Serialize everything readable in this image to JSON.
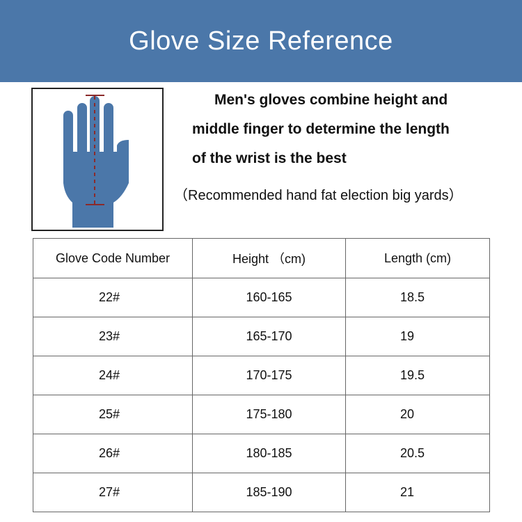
{
  "title": "Glove Size Reference",
  "description": {
    "lines": [
      "Men's gloves combine height and",
      "middle finger to determine the length",
      "of the wrist is the best"
    ],
    "note": "（Recommended hand fat election big yards）"
  },
  "illustration": {
    "icon": "hand-measure-icon",
    "hand_color": "#4b77a9",
    "measure_color": "#8b2a2a"
  },
  "colors": {
    "banner": "#4b77a9"
  },
  "table": {
    "headers": [
      "Glove Code Number",
      "Height （cm)",
      "Length (cm)"
    ],
    "rows": [
      [
        "22#",
        "160-165",
        "18.5"
      ],
      [
        "23#",
        "165-170",
        "19"
      ],
      [
        "24#",
        "170-175",
        "19.5"
      ],
      [
        "25#",
        "175-180",
        "20"
      ],
      [
        "26#",
        "180-185",
        "20.5"
      ],
      [
        "27#",
        "185-190",
        "21"
      ]
    ]
  }
}
